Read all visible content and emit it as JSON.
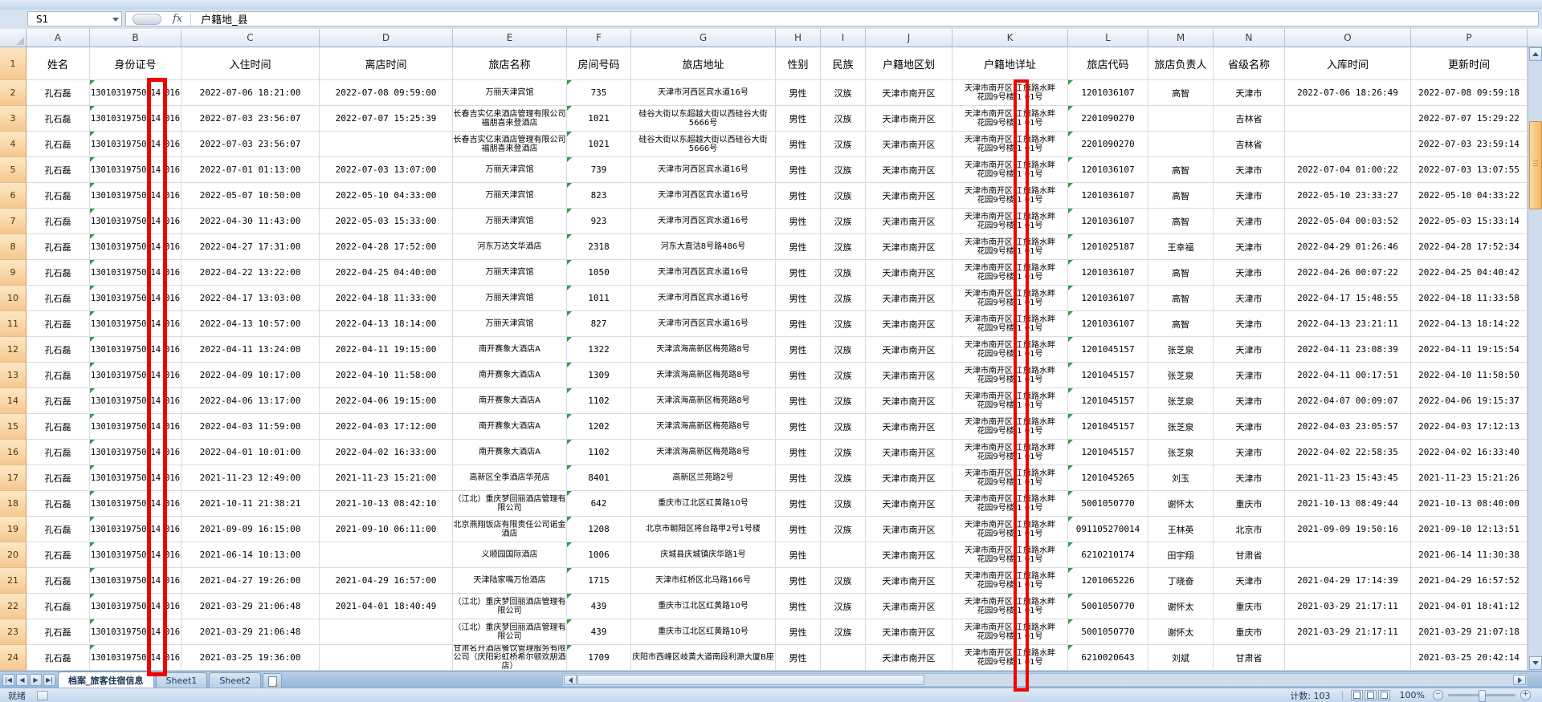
{
  "formula_bar": {
    "name_box": "S1",
    "fx_label": "fx",
    "formula": "户籍地_县"
  },
  "grid": {
    "columns": [
      {
        "letter": "A",
        "header": "姓名"
      },
      {
        "letter": "B",
        "header": "身份证号"
      },
      {
        "letter": "C",
        "header": "入住时间"
      },
      {
        "letter": "D",
        "header": "离店时间"
      },
      {
        "letter": "E",
        "header": "旅店名称"
      },
      {
        "letter": "F",
        "header": "房间号码"
      },
      {
        "letter": "G",
        "header": "旅店地址"
      },
      {
        "letter": "H",
        "header": "性别"
      },
      {
        "letter": "I",
        "header": "民族"
      },
      {
        "letter": "J",
        "header": "户籍地区划"
      },
      {
        "letter": "K",
        "header": "户籍地详址"
      },
      {
        "letter": "L",
        "header": "旅店代码"
      },
      {
        "letter": "M",
        "header": "旅店负责人"
      },
      {
        "letter": "N",
        "header": "省级名称"
      },
      {
        "letter": "O",
        "header": "入库时间"
      },
      {
        "letter": "P",
        "header": "更新时间"
      }
    ],
    "header_row_num": "1",
    "rows": [
      {
        "n": "2",
        "name": "孔石磊",
        "id": [
          "13010319750",
          "14",
          "016"
        ],
        "checkin": "2022-07-06 18:21:00",
        "checkout": "2022-07-08 09:59:00",
        "hotel": "万丽天津宾馆",
        "room": "735",
        "addr": "天津市河西区宾水道16号",
        "gender": "男性",
        "ethnic": "汉族",
        "region": "天津市南开区",
        "haddr": [
          "天津市南开区",
          "红",
          "旗路水畔",
          "花园9号楼",
          "1",
          "01号"
        ],
        "code": "1201036107",
        "manager": "高智",
        "province": "天津市",
        "stored": "2022-07-06 18:26:49",
        "updated": "2022-07-08 09:59:18"
      },
      {
        "n": "3",
        "name": "孔石磊",
        "id": [
          "13010319750",
          "14",
          "016"
        ],
        "checkin": "2022-07-03 23:56:07",
        "checkout": "2022-07-07 15:25:39",
        "hotel": "长春吉实亿来酒店管理有限公司福朋喜来登酒店",
        "room": "1021",
        "addr": "硅谷大街以东超越大街以西硅谷大街5666号",
        "gender": "男性",
        "ethnic": "汉族",
        "region": "天津市南开区",
        "haddr": [
          "天津市南开区",
          "红",
          "旗路水畔",
          "花园9号楼",
          "1",
          "01号"
        ],
        "code": "2201090270",
        "manager": "",
        "province": "吉林省",
        "stored": "",
        "updated": "2022-07-07 15:29:22"
      },
      {
        "n": "4",
        "name": "孔石磊",
        "id": [
          "13010319750",
          "14",
          "016"
        ],
        "checkin": "2022-07-03 23:56:07",
        "checkout": "",
        "hotel": "长春吉实亿来酒店管理有限公司福朋喜来登酒店",
        "room": "1021",
        "addr": "硅谷大街以东超越大街以西硅谷大街5666号",
        "gender": "男性",
        "ethnic": "汉族",
        "region": "天津市南开区",
        "haddr": [
          "天津市南开区",
          "红",
          "旗路水畔",
          "花园9号楼",
          "1",
          "01号"
        ],
        "code": "2201090270",
        "manager": "",
        "province": "吉林省",
        "stored": "",
        "updated": "2022-07-03 23:59:14"
      },
      {
        "n": "5",
        "name": "孔石磊",
        "id": [
          "13010319750",
          "14",
          "016"
        ],
        "checkin": "2022-07-01 01:13:00",
        "checkout": "2022-07-03 13:07:00",
        "hotel": "万丽天津宾馆",
        "room": "739",
        "addr": "天津市河西区宾水道16号",
        "gender": "男性",
        "ethnic": "汉族",
        "region": "天津市南开区",
        "haddr": [
          "天津市南开区",
          "红",
          "旗路水畔",
          "花园9号楼",
          "1",
          "01号"
        ],
        "code": "1201036107",
        "manager": "高智",
        "province": "天津市",
        "stored": "2022-07-04 01:00:22",
        "updated": "2022-07-03 13:07:55"
      },
      {
        "n": "6",
        "name": "孔石磊",
        "id": [
          "13010319750",
          "14",
          "016"
        ],
        "checkin": "2022-05-07 10:50:00",
        "checkout": "2022-05-10 04:33:00",
        "hotel": "万丽天津宾馆",
        "room": "823",
        "addr": "天津市河西区宾水道16号",
        "gender": "男性",
        "ethnic": "汉族",
        "region": "天津市南开区",
        "haddr": [
          "天津市南开区",
          "红",
          "旗路水畔",
          "花园9号楼",
          "1",
          "01号"
        ],
        "code": "1201036107",
        "manager": "高智",
        "province": "天津市",
        "stored": "2022-05-10 23:33:27",
        "updated": "2022-05-10 04:33:22"
      },
      {
        "n": "7",
        "name": "孔石磊",
        "id": [
          "13010319750",
          "14",
          "016"
        ],
        "checkin": "2022-04-30 11:43:00",
        "checkout": "2022-05-03 15:33:00",
        "hotel": "万丽天津宾馆",
        "room": "923",
        "addr": "天津市河西区宾水道16号",
        "gender": "男性",
        "ethnic": "汉族",
        "region": "天津市南开区",
        "haddr": [
          "天津市南开区",
          "红",
          "旗路水畔",
          "花园9号楼",
          "1",
          "01号"
        ],
        "code": "1201036107",
        "manager": "高智",
        "province": "天津市",
        "stored": "2022-05-04 00:03:52",
        "updated": "2022-05-03 15:33:14"
      },
      {
        "n": "8",
        "name": "孔石磊",
        "id": [
          "13010319750",
          "14",
          "016"
        ],
        "checkin": "2022-04-27 17:31:00",
        "checkout": "2022-04-28 17:52:00",
        "hotel": "河东万达文华酒店",
        "room": "2318",
        "addr": "河东大直沽8号路486号",
        "gender": "男性",
        "ethnic": "汉族",
        "region": "天津市南开区",
        "haddr": [
          "天津市南开区",
          "红",
          "旗路水畔",
          "花园9号楼",
          "1",
          "01号"
        ],
        "code": "1201025187",
        "manager": "王幸福",
        "province": "天津市",
        "stored": "2022-04-29 01:26:46",
        "updated": "2022-04-28 17:52:34"
      },
      {
        "n": "9",
        "name": "孔石磊",
        "id": [
          "13010319750",
          "14",
          "016"
        ],
        "checkin": "2022-04-22 13:22:00",
        "checkout": "2022-04-25 04:40:00",
        "hotel": "万丽天津宾馆",
        "room": "1050",
        "addr": "天津市河西区宾水道16号",
        "gender": "男性",
        "ethnic": "汉族",
        "region": "天津市南开区",
        "haddr": [
          "天津市南开区",
          "红",
          "旗路水畔",
          "花园9号楼",
          "1",
          "01号"
        ],
        "code": "1201036107",
        "manager": "高智",
        "province": "天津市",
        "stored": "2022-04-26 00:07:22",
        "updated": "2022-04-25 04:40:42"
      },
      {
        "n": "10",
        "name": "孔石磊",
        "id": [
          "13010319750",
          "14",
          "016"
        ],
        "checkin": "2022-04-17 13:03:00",
        "checkout": "2022-04-18 11:33:00",
        "hotel": "万丽天津宾馆",
        "room": "1011",
        "addr": "天津市河西区宾水道16号",
        "gender": "男性",
        "ethnic": "汉族",
        "region": "天津市南开区",
        "haddr": [
          "天津市南开区",
          "红",
          "旗路水畔",
          "花园9号楼",
          "1",
          "01号"
        ],
        "code": "1201036107",
        "manager": "高智",
        "province": "天津市",
        "stored": "2022-04-17 15:48:55",
        "updated": "2022-04-18 11:33:58"
      },
      {
        "n": "11",
        "name": "孔石磊",
        "id": [
          "13010319750",
          "14",
          "016"
        ],
        "checkin": "2022-04-13 10:57:00",
        "checkout": "2022-04-13 18:14:00",
        "hotel": "万丽天津宾馆",
        "room": "827",
        "addr": "天津市河西区宾水道16号",
        "gender": "男性",
        "ethnic": "汉族",
        "region": "天津市南开区",
        "haddr": [
          "天津市南开区",
          "红",
          "旗路水畔",
          "花园9号楼",
          "1",
          "01号"
        ],
        "code": "1201036107",
        "manager": "高智",
        "province": "天津市",
        "stored": "2022-04-13 23:21:11",
        "updated": "2022-04-13 18:14:22"
      },
      {
        "n": "12",
        "name": "孔石磊",
        "id": [
          "13010319750",
          "14",
          "016"
        ],
        "checkin": "2022-04-11 13:24:00",
        "checkout": "2022-04-11 19:15:00",
        "hotel": "南开赛象大酒店A",
        "room": "1322",
        "addr": "天津滨海高新区梅苑路8号",
        "gender": "男性",
        "ethnic": "汉族",
        "region": "天津市南开区",
        "haddr": [
          "天津市南开区",
          "红",
          "旗路水畔",
          "花园9号楼",
          "1",
          "01号"
        ],
        "code": "1201045157",
        "manager": "张芝泉",
        "province": "天津市",
        "stored": "2022-04-11 23:08:39",
        "updated": "2022-04-11 19:15:54"
      },
      {
        "n": "13",
        "name": "孔石磊",
        "id": [
          "13010319750",
          "14",
          "016"
        ],
        "checkin": "2022-04-09 10:17:00",
        "checkout": "2022-04-10 11:58:00",
        "hotel": "南开赛象大酒店A",
        "room": "1309",
        "addr": "天津滨海高新区梅苑路8号",
        "gender": "男性",
        "ethnic": "汉族",
        "region": "天津市南开区",
        "haddr": [
          "天津市南开区",
          "红",
          "旗路水畔",
          "花园9号楼",
          "1",
          "01号"
        ],
        "code": "1201045157",
        "manager": "张芝泉",
        "province": "天津市",
        "stored": "2022-04-11 00:17:51",
        "updated": "2022-04-10 11:58:50"
      },
      {
        "n": "14",
        "name": "孔石磊",
        "id": [
          "13010319750",
          "14",
          "016"
        ],
        "checkin": "2022-04-06 13:17:00",
        "checkout": "2022-04-06 19:15:00",
        "hotel": "南开赛象大酒店A",
        "room": "1102",
        "addr": "天津滨海高新区梅苑路8号",
        "gender": "男性",
        "ethnic": "汉族",
        "region": "天津市南开区",
        "haddr": [
          "天津市南开区",
          "红",
          "旗路水畔",
          "花园9号楼",
          "1",
          "01号"
        ],
        "code": "1201045157",
        "manager": "张芝泉",
        "province": "天津市",
        "stored": "2022-04-07 00:09:07",
        "updated": "2022-04-06 19:15:37"
      },
      {
        "n": "15",
        "name": "孔石磊",
        "id": [
          "13010319750",
          "14",
          "016"
        ],
        "checkin": "2022-04-03 11:59:00",
        "checkout": "2022-04-03 17:12:00",
        "hotel": "南开赛象大酒店A",
        "room": "1202",
        "addr": "天津滨海高新区梅苑路8号",
        "gender": "男性",
        "ethnic": "汉族",
        "region": "天津市南开区",
        "haddr": [
          "天津市南开区",
          "红",
          "旗路水畔",
          "花园9号楼",
          "1",
          "01号"
        ],
        "code": "1201045157",
        "manager": "张芝泉",
        "province": "天津市",
        "stored": "2022-04-03 23:05:57",
        "updated": "2022-04-03 17:12:13"
      },
      {
        "n": "16",
        "name": "孔石磊",
        "id": [
          "13010319750",
          "14",
          "016"
        ],
        "checkin": "2022-04-01 10:01:00",
        "checkout": "2022-04-02 16:33:00",
        "hotel": "南开赛象大酒店A",
        "room": "1102",
        "addr": "天津滨海高新区梅苑路8号",
        "gender": "男性",
        "ethnic": "汉族",
        "region": "天津市南开区",
        "haddr": [
          "天津市南开区",
          "红",
          "旗路水畔",
          "花园9号楼",
          "1",
          "01号"
        ],
        "code": "1201045157",
        "manager": "张芝泉",
        "province": "天津市",
        "stored": "2022-04-02 22:58:35",
        "updated": "2022-04-02 16:33:40"
      },
      {
        "n": "17",
        "name": "孔石磊",
        "id": [
          "13010319750",
          "14",
          "016"
        ],
        "checkin": "2021-11-23 12:49:00",
        "checkout": "2021-11-23 15:21:00",
        "hotel": "高新区全季酒店华苑店",
        "room": "8401",
        "addr": "高新区兰苑路2号",
        "gender": "男性",
        "ethnic": "汉族",
        "region": "天津市南开区",
        "haddr": [
          "天津市南开区",
          "红",
          "旗路水畔",
          "花园9号楼",
          "1",
          "01号"
        ],
        "code": "1201045265",
        "manager": "刘玉",
        "province": "天津市",
        "stored": "2021-11-23 15:43:45",
        "updated": "2021-11-23 15:21:26"
      },
      {
        "n": "18",
        "name": "孔石磊",
        "id": [
          "13010319750",
          "14",
          "016"
        ],
        "checkin": "2021-10-11 21:38:21",
        "checkout": "2021-10-13 08:42:10",
        "hotel": "（江北）重庆梦回丽酒店管理有限公司",
        "room": "642",
        "addr": "重庆市江北区红黄路10号",
        "gender": "男性",
        "ethnic": "汉族",
        "region": "天津市南开区",
        "haddr": [
          "天津市南开区",
          "红",
          "旗路水畔",
          "花园9号楼",
          "1",
          "01号"
        ],
        "code": "5001050770",
        "manager": "谢怀太",
        "province": "重庆市",
        "stored": "2021-10-13 08:49:44",
        "updated": "2021-10-13 08:40:00"
      },
      {
        "n": "19",
        "name": "孔石磊",
        "id": [
          "13010319750",
          "14",
          "016"
        ],
        "checkin": "2021-09-09 16:15:00",
        "checkout": "2021-09-10 06:11:00",
        "hotel": "北京燕翔饭店有限责任公司诺金酒店",
        "room": "1208",
        "addr": "北京市朝阳区将台路甲2号1号楼",
        "gender": "男性",
        "ethnic": "汉族",
        "region": "天津市南开区",
        "haddr": [
          "天津市南开区",
          "红",
          "旗路水畔",
          "花园9号楼",
          "1",
          "01号"
        ],
        "code": "091105270014",
        "manager": "王林英",
        "province": "北京市",
        "stored": "2021-09-09 19:50:16",
        "updated": "2021-09-10 12:13:51"
      },
      {
        "n": "20",
        "name": "孔石磊",
        "id": [
          "13010319750",
          "14",
          "016"
        ],
        "checkin": "2021-06-14 10:13:00",
        "checkout": "",
        "hotel": "义顺园国际酒店",
        "room": "1006",
        "addr": "庆城县庆城镇庆华路1号",
        "gender": "男性",
        "ethnic": "",
        "region": "天津市南开区",
        "haddr": [
          "天津市南开区",
          "红",
          "旗路水畔",
          "花园9号楼",
          "1",
          "01号"
        ],
        "code": "6210210174",
        "manager": "田宇翔",
        "province": "甘肃省",
        "stored": "",
        "updated": "2021-06-14 11:30:38"
      },
      {
        "n": "21",
        "name": "孔石磊",
        "id": [
          "13010319750",
          "14",
          "016"
        ],
        "checkin": "2021-04-27 19:26:00",
        "checkout": "2021-04-29 16:57:00",
        "hotel": "天津陆家嘴万怡酒店",
        "room": "1715",
        "addr": "天津市红桥区北马路166号",
        "gender": "男性",
        "ethnic": "汉族",
        "region": "天津市南开区",
        "haddr": [
          "天津市南开区",
          "红",
          "旗路水畔",
          "花园9号楼",
          "1",
          "01号"
        ],
        "code": "1201065226",
        "manager": "丁晓奋",
        "province": "天津市",
        "stored": "2021-04-29 17:14:39",
        "updated": "2021-04-29 16:57:52"
      },
      {
        "n": "22",
        "name": "孔石磊",
        "id": [
          "13010319750",
          "14",
          "016"
        ],
        "checkin": "2021-03-29 21:06:48",
        "checkout": "2021-04-01 18:40:49",
        "hotel": "（江北）重庆梦回丽酒店管理有限公司",
        "room": "439",
        "addr": "重庆市江北区红黄路10号",
        "gender": "男性",
        "ethnic": "汉族",
        "region": "天津市南开区",
        "haddr": [
          "天津市南开区",
          "红",
          "旗路水畔",
          "花园9号楼",
          "1",
          "01号"
        ],
        "code": "5001050770",
        "manager": "谢怀太",
        "province": "重庆市",
        "stored": "2021-03-29 21:17:11",
        "updated": "2021-04-01 18:41:12"
      },
      {
        "n": "23",
        "name": "孔石磊",
        "id": [
          "13010319750",
          "14",
          "016"
        ],
        "checkin": "2021-03-29 21:06:48",
        "checkout": "",
        "hotel": "（江北）重庆梦回丽酒店管理有限公司",
        "room": "439",
        "addr": "重庆市江北区红黄路10号",
        "gender": "男性",
        "ethnic": "汉族",
        "region": "天津市南开区",
        "haddr": [
          "天津市南开区",
          "红",
          "旗路水畔",
          "花园9号楼",
          "1",
          "01号"
        ],
        "code": "5001050770",
        "manager": "谢怀太",
        "province": "重庆市",
        "stored": "2021-03-29 21:17:11",
        "updated": "2021-03-29 21:07:18"
      },
      {
        "n": "24",
        "name": "孔石磊",
        "id": [
          "13010319750",
          "14",
          "016"
        ],
        "checkin": "2021-03-25 19:36:00",
        "checkout": "",
        "hotel": "甘肃名开酒店餐饮管理服务有限公司（庆阳彩虹桥希尔顿欢朋酒店）",
        "room": "1709",
        "addr": "庆阳市西峰区岐黄大道南段利源大厦B座",
        "gender": "男性",
        "ethnic": "",
        "region": "天津市南开区",
        "haddr": [
          "天津市南开区",
          "红",
          "旗路水畔",
          "花园9号楼",
          "1",
          "01号"
        ],
        "code": "6210020643",
        "manager": "刘斌",
        "province": "甘肃省",
        "stored": "",
        "updated": "2021-03-25 20:42:14"
      }
    ]
  },
  "sheet_bar": {
    "tabs": [
      {
        "label": "档案_旅客住宿信息",
        "active": true
      },
      {
        "label": "Sheet1",
        "active": false
      },
      {
        "label": "Sheet2",
        "active": false
      }
    ]
  },
  "status_bar": {
    "ready": "就绪",
    "count": "计数: 103",
    "zoom": "100%"
  },
  "colors": {
    "redaction": "#ee0500",
    "row_header_highlight": "#f5c98f",
    "flag_green": "#2f9e44"
  }
}
